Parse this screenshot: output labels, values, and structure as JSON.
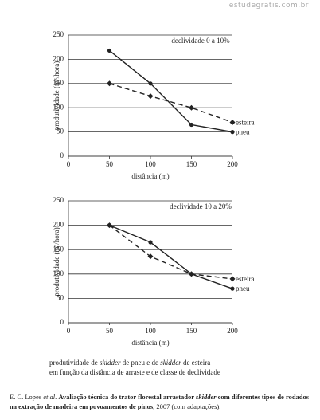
{
  "watermark": "estudegratis.com.br",
  "chart_data": [
    {
      "type": "line",
      "annotation": "declividade 0 a 10%",
      "xlabel": "distância (m)",
      "ylabel": "produtividade (m³/hora)",
      "x": [
        50,
        100,
        150,
        200
      ],
      "xlim": [
        0,
        200
      ],
      "xticks": [
        0,
        50,
        100,
        150,
        200
      ],
      "ylim": [
        0,
        250
      ],
      "yticks": [
        0,
        50,
        100,
        150,
        200,
        250
      ],
      "grid": true,
      "series": [
        {
          "name": "pneu",
          "color": "#222222",
          "line_style": "solid",
          "marker": "circle",
          "values": [
            218,
            150,
            65,
            50
          ]
        },
        {
          "name": "esteira",
          "color": "#222222",
          "line_style": "dashed",
          "marker": "diamond",
          "values": [
            150,
            124,
            100,
            70
          ]
        }
      ]
    },
    {
      "type": "line",
      "annotation": "declividade 10 a 20%",
      "xlabel": "distância (m)",
      "ylabel": "produtividade (m³/hora)",
      "x": [
        50,
        100,
        150,
        200
      ],
      "xlim": [
        0,
        200
      ],
      "xticks": [
        0,
        50,
        100,
        150,
        200
      ],
      "ylim": [
        0,
        250
      ],
      "yticks": [
        0,
        50,
        100,
        150,
        200,
        250
      ],
      "grid": true,
      "series": [
        {
          "name": "pneu",
          "color": "#222222",
          "line_style": "solid",
          "marker": "circle",
          "values": [
            200,
            165,
            100,
            70
          ]
        },
        {
          "name": "esteira",
          "color": "#222222",
          "line_style": "dashed",
          "marker": "diamond",
          "values": [
            200,
            136,
            100,
            90
          ]
        }
      ]
    }
  ],
  "caption": [
    "produtividade de ",
    "skidder",
    " de pneu e de ",
    "skidder",
    " de esteira",
    "em função da distância de arraste e de classe de declividade"
  ],
  "source": [
    "E. C. Lopes ",
    "et al",
    ". ",
    "Avaliação técnica do trator florestal arrastador ",
    "skidder",
    " com diferentes tipos de rodados na extração de madeira em povoamentos de pinos",
    ", 2007 (com adaptações)."
  ]
}
